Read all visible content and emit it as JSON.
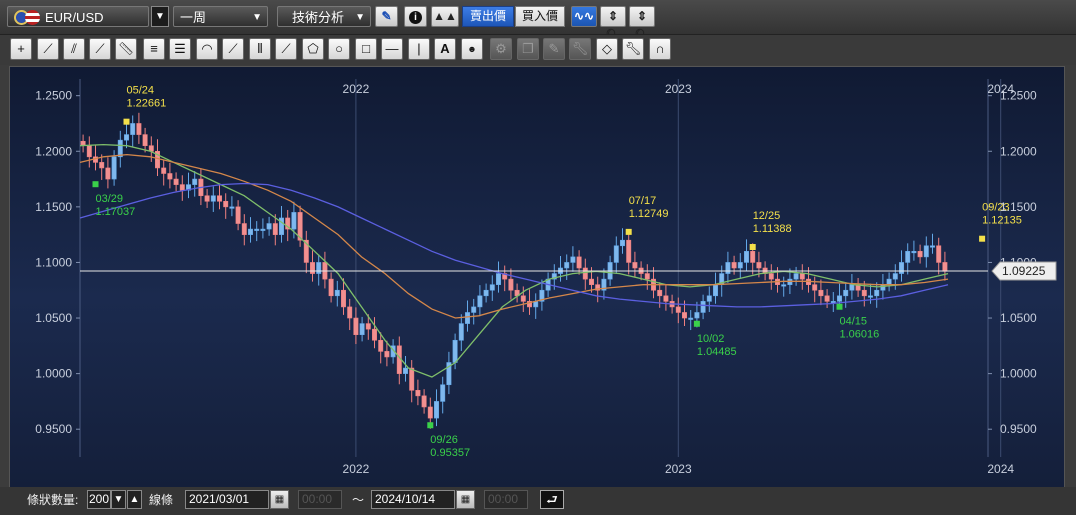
{
  "toolbar": {
    "symbol": "EUR/USD",
    "period": "一周",
    "tech_menu": "技術分析",
    "sell_rate": "賣出價",
    "buy_rate": "買入價"
  },
  "bottom": {
    "count_label": "條狀數量:",
    "count_value": "200",
    "line_label": "線條",
    "start_date": "2021/03/01",
    "start_time": "00:00",
    "tilde": "〜",
    "end_date": "2024/10/14",
    "end_time": "00:00"
  },
  "chart_data": {
    "type": "line",
    "instrument": "EUR/USD",
    "ylim": [
      0.925,
      1.265
    ],
    "y_ticks": [
      "1.2500",
      "1.2000",
      "1.1500",
      "1.1000",
      "1.0500",
      "1.0000",
      "0.9500"
    ],
    "x_ticks": [
      {
        "label": "2022",
        "t": 44
      },
      {
        "label": "2023",
        "t": 96
      },
      {
        "label": "2024",
        "t": 148
      }
    ],
    "current_price": "1.09225",
    "current_value": 1.09225,
    "price": [
      1.205,
      1.195,
      1.19,
      1.185,
      1.175,
      1.195,
      1.21,
      1.215,
      1.225,
      1.215,
      1.205,
      1.2,
      1.185,
      1.18,
      1.175,
      1.17,
      1.165,
      1.17,
      1.175,
      1.16,
      1.155,
      1.16,
      1.155,
      1.15,
      1.15,
      1.135,
      1.125,
      1.13,
      1.13,
      1.13,
      1.135,
      1.125,
      1.14,
      1.13,
      1.145,
      1.12,
      1.1,
      1.09,
      1.1,
      1.085,
      1.07,
      1.075,
      1.06,
      1.05,
      1.035,
      1.045,
      1.04,
      1.03,
      1.02,
      1.015,
      1.025,
      1.0,
      1.005,
      0.985,
      0.98,
      0.97,
      0.96,
      0.975,
      0.99,
      1.01,
      1.03,
      1.045,
      1.055,
      1.06,
      1.07,
      1.075,
      1.08,
      1.09,
      1.085,
      1.075,
      1.07,
      1.065,
      1.06,
      1.065,
      1.075,
      1.085,
      1.09,
      1.095,
      1.1,
      1.105,
      1.095,
      1.085,
      1.08,
      1.075,
      1.085,
      1.1,
      1.115,
      1.12,
      1.1,
      1.095,
      1.09,
      1.085,
      1.075,
      1.07,
      1.065,
      1.06,
      1.055,
      1.05,
      1.05,
      1.055,
      1.065,
      1.07,
      1.08,
      1.09,
      1.1,
      1.095,
      1.1,
      1.11,
      1.1,
      1.095,
      1.09,
      1.085,
      1.08,
      1.08,
      1.085,
      1.09,
      1.085,
      1.08,
      1.075,
      1.07,
      1.065,
      1.065,
      1.07,
      1.075,
      1.08,
      1.075,
      1.07,
      1.07,
      1.075,
      1.08,
      1.085,
      1.09,
      1.1,
      1.11,
      1.11,
      1.105,
      1.115,
      1.115,
      1.1,
      1.092
    ],
    "series": [
      {
        "color": "#7fbf6a",
        "values": [
          1.205,
          1.206,
          1.205,
          1.2,
          1.19,
          1.18,
          1.17,
          1.16,
          1.145,
          1.13,
          1.11,
          1.09,
          1.06,
          1.03,
          1.005,
          0.997,
          1.01,
          1.035,
          1.06,
          1.075,
          1.085,
          1.09,
          1.092,
          1.09,
          1.085,
          1.08,
          1.078,
          1.08,
          1.085,
          1.09,
          1.092,
          1.09,
          1.085,
          1.08,
          1.078,
          1.08,
          1.085,
          1.09
        ]
      },
      {
        "color": "#d4874a",
        "values": [
          1.19,
          1.195,
          1.197,
          1.195,
          1.19,
          1.185,
          1.18,
          1.173,
          1.165,
          1.155,
          1.14,
          1.125,
          1.105,
          1.09,
          1.072,
          1.058,
          1.05,
          1.052,
          1.058,
          1.063,
          1.068,
          1.072,
          1.076,
          1.078,
          1.08,
          1.08,
          1.08,
          1.08,
          1.081,
          1.082,
          1.083,
          1.083,
          1.082,
          1.081,
          1.08,
          1.08,
          1.082,
          1.085
        ]
      },
      {
        "color": "#5b5fe0",
        "values": [
          1.14,
          1.146,
          1.152,
          1.158,
          1.163,
          1.167,
          1.17,
          1.171,
          1.17,
          1.165,
          1.158,
          1.15,
          1.14,
          1.13,
          1.12,
          1.11,
          1.102,
          1.096,
          1.09,
          1.085,
          1.08,
          1.075,
          1.07,
          1.067,
          1.065,
          1.063,
          1.062,
          1.061,
          1.06,
          1.06,
          1.061,
          1.062,
          1.063,
          1.065,
          1.067,
          1.07,
          1.075,
          1.08
        ]
      }
    ],
    "annotations": [
      {
        "date": "05/24",
        "value": "1.22661",
        "v": 1.22661,
        "t": 7,
        "kind": "high"
      },
      {
        "date": "03/29",
        "value": "1.17037",
        "v": 1.17037,
        "t": 2,
        "kind": "low"
      },
      {
        "date": "09/26",
        "value": "0.95357",
        "v": 0.95357,
        "t": 56,
        "kind": "low"
      },
      {
        "date": "07/17",
        "value": "1.12749",
        "v": 1.12749,
        "t": 88,
        "kind": "high"
      },
      {
        "date": "10/02",
        "value": "1.04485",
        "v": 1.04485,
        "t": 99,
        "kind": "low"
      },
      {
        "date": "12/25",
        "value": "1.11388",
        "v": 1.11388,
        "t": 108,
        "kind": "high"
      },
      {
        "date": "04/15",
        "value": "1.06016",
        "v": 1.06016,
        "t": 122,
        "kind": "low"
      },
      {
        "date": "09/23",
        "value": "1.12135",
        "v": 1.12135,
        "t": 145,
        "kind": "high"
      }
    ]
  }
}
